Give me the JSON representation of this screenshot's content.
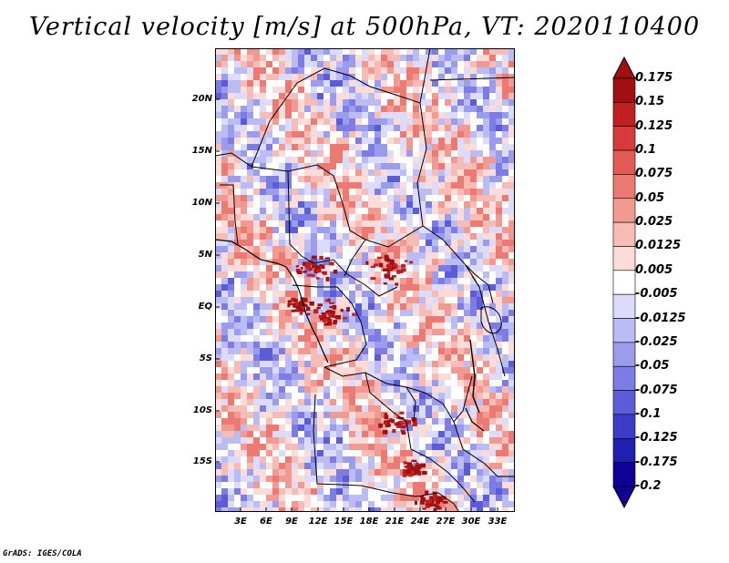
{
  "title": "Vertical velocity [m/s] at 500hPa, VT: 2020110400",
  "footer": "GrADS: IGES/COLA",
  "lat_labels": [
    "20N",
    "15N",
    "10N",
    "5N",
    "EQ",
    "5S",
    "10S",
    "15S"
  ],
  "lon_labels": [
    "3E",
    "6E",
    "9E",
    "12E",
    "15E",
    "18E",
    "21E",
    "24E",
    "27E",
    "30E",
    "33E"
  ],
  "colorbar": {
    "labels": [
      "0.175",
      "0.15",
      "0.125",
      "0.1",
      "0.075",
      "0.05",
      "0.025",
      "0.0125",
      "0.005",
      "-0.005",
      "-0.0125",
      "-0.025",
      "-0.05",
      "-0.075",
      "-0.1",
      "-0.125",
      "-0.175",
      "-0.2"
    ],
    "colors": [
      "#a01010",
      "#c02020",
      "#d83a3a",
      "#e45a55",
      "#ec7a72",
      "#f29a92",
      "#f7bcb6",
      "#fbdcd8",
      "#ffffff",
      "#dcdcfa",
      "#bcbcf4",
      "#9c9cee",
      "#7c7ce4",
      "#5c5cd8",
      "#3c3cc8",
      "#2020b0",
      "#100098"
    ]
  },
  "map": {
    "lon_range": [
      0,
      34.5
    ],
    "lat_range": [
      -20,
      24.5
    ],
    "field_colors": {
      "strong_up": "#8b0a0a",
      "up": "#ee9a90",
      "down": "#8e8ee8",
      "neutral": "#ffffff"
    }
  }
}
